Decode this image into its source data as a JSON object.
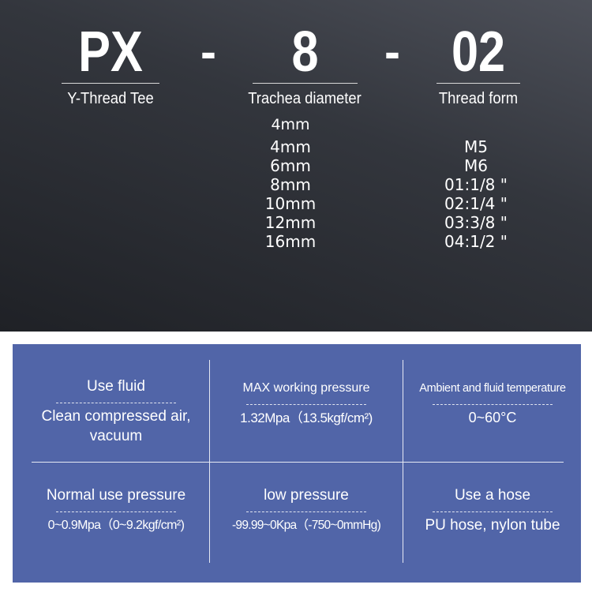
{
  "model": {
    "parts": [
      {
        "code": "PX",
        "label": "Y-Thread Tee"
      },
      {
        "code": "8",
        "label": "Trachea diameter"
      },
      {
        "code": "02",
        "label": "Thread form"
      }
    ],
    "separator": "-",
    "diameter_header": "4mm",
    "diameters": [
      "4mm",
      "6mm",
      "8mm",
      "10mm",
      "12mm",
      "16mm"
    ],
    "threads": [
      "M5",
      "M6",
      "01:1/8 \"",
      "02:1/4 \"",
      "03:3/8 \"",
      "04:1/2 \""
    ]
  },
  "specs": [
    {
      "title": "Use fluid",
      "value": "Clean compressed air, vacuum"
    },
    {
      "title": "MAX working pressure",
      "value": "1.32Mpa（13.5kgf/cm²)"
    },
    {
      "title": "Ambient and fluid temperature",
      "value": "0~60°C"
    },
    {
      "title": "Normal use pressure",
      "value": "0~0.9Mpa（0~9.2kgf/cm²)"
    },
    {
      "title": "low pressure",
      "value": "-99.99~0Kpa（-750~0mmHg)"
    },
    {
      "title": "Use a hose",
      "value": "PU hose, nylon tube"
    }
  ],
  "colors": {
    "panel": "#5165a8",
    "background": "#2a2c33"
  }
}
